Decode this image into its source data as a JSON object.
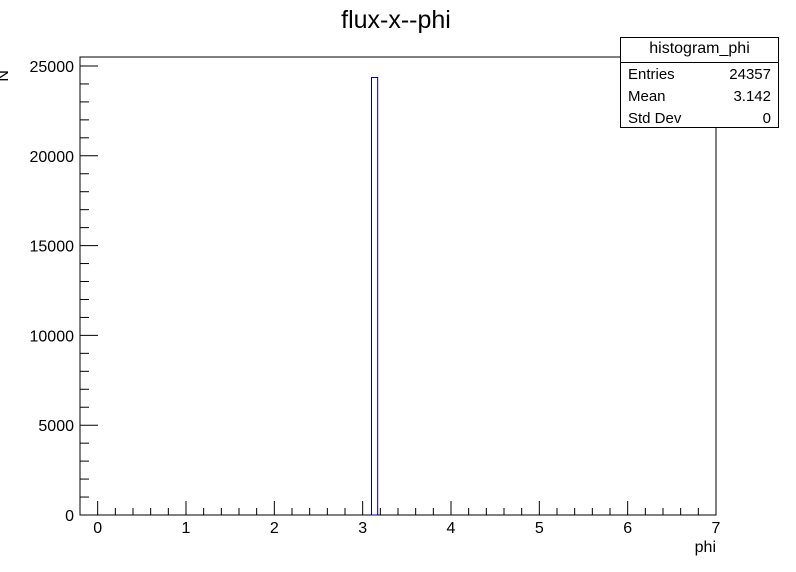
{
  "chart_data": {
    "type": "bar",
    "title": "flux-x--phi",
    "xlabel": "phi",
    "ylabel": "N",
    "xlim": [
      -0.2,
      7
    ],
    "ylim": [
      0,
      25500
    ],
    "x_ticks": [
      "0",
      "1",
      "2",
      "3",
      "4",
      "5",
      "6",
      "7"
    ],
    "y_ticks": [
      "0",
      "5000",
      "10000",
      "15000",
      "20000",
      "25000"
    ],
    "bins": [
      {
        "x_low": 3.1,
        "x_high": 3.17,
        "count": 24357
      }
    ],
    "line_color": "#000099",
    "grid": false
  },
  "stats": {
    "title": "histogram_phi",
    "rows": [
      {
        "label": "Entries",
        "value": "24357"
      },
      {
        "label": "Mean",
        "value": "3.142"
      },
      {
        "label": "Std Dev",
        "value": "0"
      }
    ]
  }
}
